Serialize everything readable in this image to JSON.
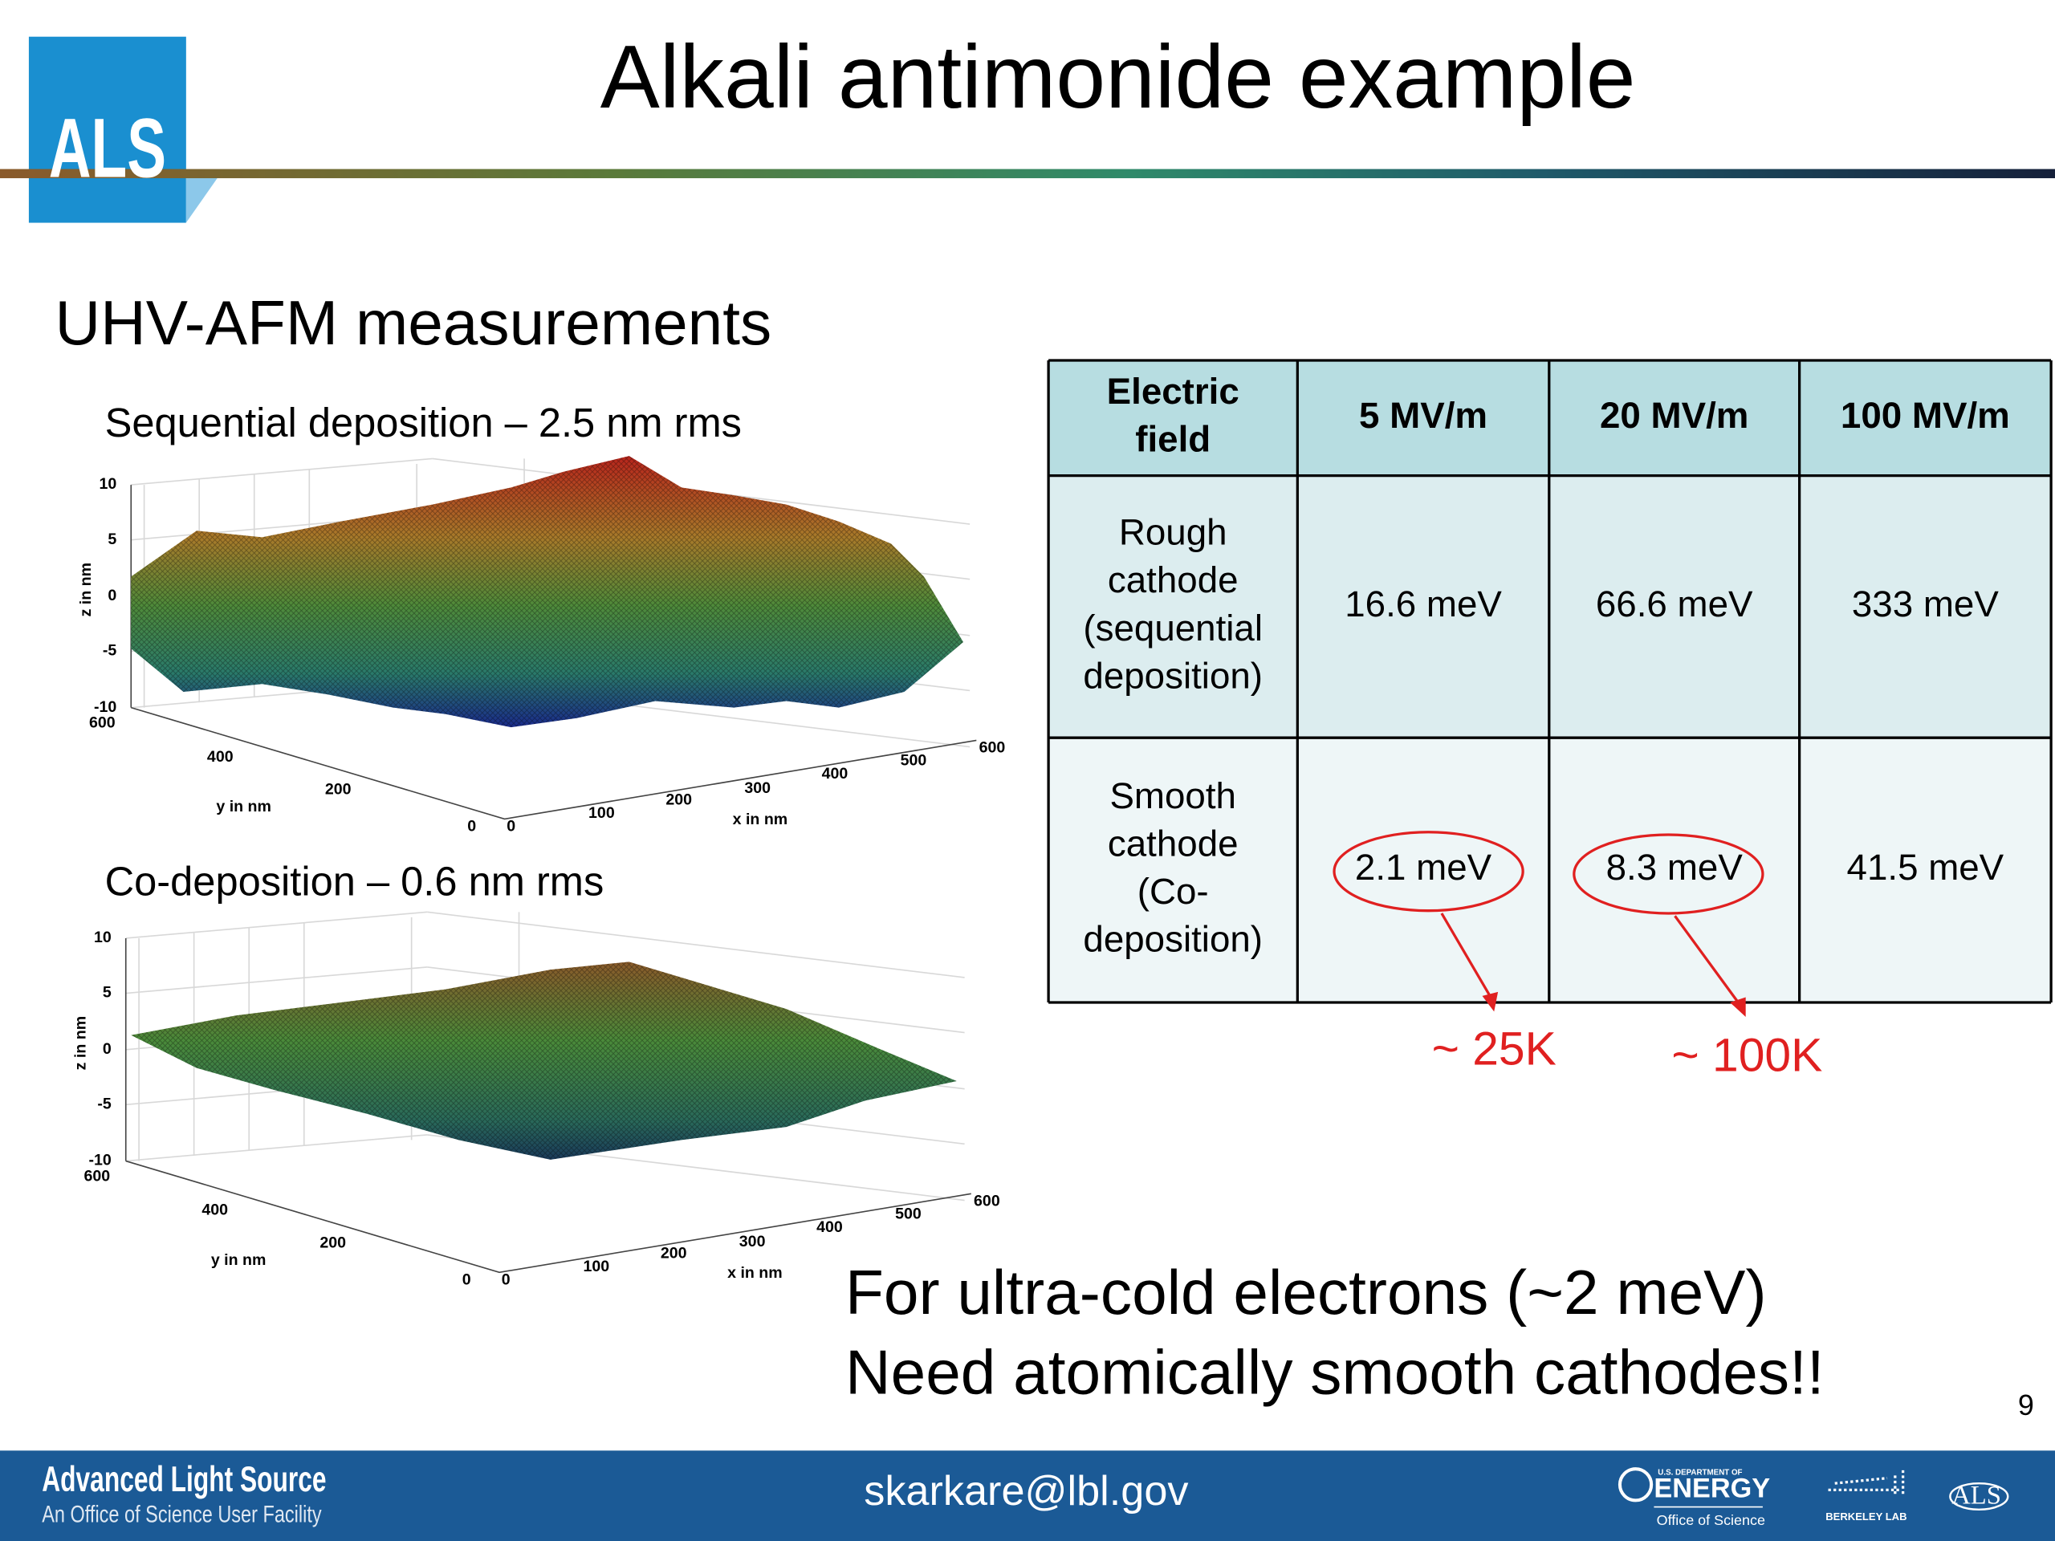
{
  "header": {
    "logo": "ALS",
    "title": "Alkali antimonide example"
  },
  "section_title": "UHV-AFM measurements",
  "plots": [
    {
      "caption": "Sequential deposition – 2.5 nm rms",
      "z_label": "z in nm",
      "y_label": "y in nm",
      "x_label": "x in nm",
      "z_ticks": [
        10,
        5,
        0,
        -5,
        -10
      ],
      "y_ticks": [
        600,
        400,
        200,
        0
      ],
      "x_ticks": [
        0,
        100,
        200,
        300,
        400,
        500,
        600
      ]
    },
    {
      "caption": "Co-deposition – 0.6 nm rms",
      "z_label": "z in nm",
      "y_label": "y in nm",
      "x_label": "x in nm",
      "z_ticks": [
        10,
        5,
        0,
        -5,
        -10
      ],
      "y_ticks": [
        600,
        400,
        200,
        0
      ],
      "x_ticks": [
        0,
        100,
        200,
        300,
        400,
        500,
        600
      ]
    }
  ],
  "table": {
    "header": [
      [
        "Electric",
        "field"
      ],
      [
        "5 MV/m"
      ],
      [
        "20 MV/m"
      ],
      [
        "100 MV/m"
      ]
    ],
    "rows": [
      [
        [
          "Rough",
          "cathode",
          "(sequential",
          "deposition)"
        ],
        [
          "16.6 meV"
        ],
        [
          "66.6 meV"
        ],
        [
          "333 meV"
        ]
      ],
      [
        [
          "Smooth",
          "cathode",
          "(Co-",
          "deposition)"
        ],
        [
          "2.1 meV"
        ],
        [
          "8.3 meV"
        ],
        [
          "41.5 meV"
        ]
      ]
    ]
  },
  "annotations": [
    "~ 25K",
    "~ 100K"
  ],
  "conclusion": [
    "For ultra-cold electrons (~2 meV)",
    "Need atomically smooth cathodes!!"
  ],
  "page_number": 9,
  "footer": {
    "org": "Advanced Light Source",
    "org_subtitle": "An Office of Science User Facility",
    "email": "skarkare@lbl.gov",
    "logos": [
      "U.S. DEPARTMENT OF",
      "ENERGY",
      "Office of Science",
      "BERKELEY LAB",
      "ALS"
    ]
  }
}
